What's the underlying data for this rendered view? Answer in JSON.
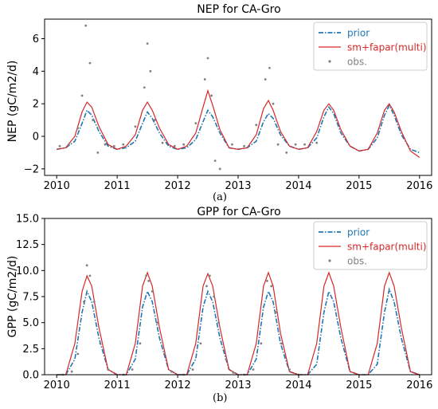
{
  "colors": {
    "prior": "#1f77b4",
    "multi": "#d62728",
    "obs": "#808080"
  },
  "captions": {
    "a": "(a)",
    "b": "(b)"
  },
  "chart_data": [
    {
      "type": "line",
      "title": "NEP for CA-Gro",
      "xlabel": "",
      "ylabel": "NEP (gC/m2/d)",
      "xlim": [
        2009.8,
        2016.2
      ],
      "ylim": [
        -2.4,
        7.2
      ],
      "xticks": [
        2010,
        2011,
        2012,
        2013,
        2014,
        2015,
        2016
      ],
      "xtick_labels": [
        "2010",
        "2011",
        "2012",
        "2013",
        "2014",
        "2015",
        "2016"
      ],
      "yticks": [
        -2,
        0,
        2,
        4,
        6
      ],
      "ytick_labels": [
        "−2",
        "0",
        "2",
        "4",
        "6"
      ],
      "grid": false,
      "legend_position": "top-right",
      "legend": [
        {
          "label": "prior",
          "style": "dash-dot"
        },
        {
          "label": "sm+fapar(multi)",
          "style": "solid"
        },
        {
          "label": "obs.",
          "style": "dots"
        }
      ],
      "series": [
        {
          "name": "prior",
          "x": [
            2010.0,
            2010.15,
            2010.3,
            2010.42,
            2010.5,
            2010.58,
            2010.7,
            2010.85,
            2011.0,
            2011.15,
            2011.3,
            2011.42,
            2011.5,
            2011.58,
            2011.7,
            2011.85,
            2012.0,
            2012.15,
            2012.3,
            2012.42,
            2012.5,
            2012.58,
            2012.7,
            2012.85,
            2013.0,
            2013.15,
            2013.3,
            2013.42,
            2013.5,
            2013.58,
            2013.7,
            2013.85,
            2014.0,
            2014.15,
            2014.3,
            2014.42,
            2014.5,
            2014.58,
            2014.7,
            2014.85,
            2015.0,
            2015.15,
            2015.3,
            2015.42,
            2015.5,
            2015.58,
            2015.7,
            2015.85,
            2016.0
          ],
          "values": [
            -0.8,
            -0.7,
            -0.3,
            0.8,
            1.6,
            1.3,
            0.3,
            -0.6,
            -0.8,
            -0.7,
            -0.3,
            0.8,
            1.5,
            1.1,
            0.2,
            -0.6,
            -0.8,
            -0.7,
            -0.2,
            0.9,
            1.6,
            1.2,
            0.2,
            -0.7,
            -0.8,
            -0.7,
            -0.3,
            0.9,
            1.4,
            1.1,
            0.1,
            -0.6,
            -0.8,
            -0.7,
            -0.1,
            1.2,
            1.8,
            1.4,
            0.2,
            -0.6,
            -0.9,
            -0.8,
            -0.1,
            1.3,
            1.9,
            1.3,
            0.1,
            -0.8,
            -1.0
          ]
        },
        {
          "name": "sm+fapar(multi)",
          "x": [
            2010.0,
            2010.15,
            2010.3,
            2010.42,
            2010.5,
            2010.58,
            2010.7,
            2010.85,
            2011.0,
            2011.15,
            2011.3,
            2011.42,
            2011.5,
            2011.58,
            2011.7,
            2011.85,
            2012.0,
            2012.15,
            2012.3,
            2012.42,
            2012.5,
            2012.58,
            2012.7,
            2012.85,
            2013.0,
            2013.15,
            2013.3,
            2013.42,
            2013.5,
            2013.58,
            2013.7,
            2013.85,
            2014.0,
            2014.15,
            2014.3,
            2014.42,
            2014.5,
            2014.58,
            2014.7,
            2014.85,
            2015.0,
            2015.15,
            2015.3,
            2015.42,
            2015.5,
            2015.58,
            2015.7,
            2015.85,
            2016.0
          ],
          "values": [
            -0.8,
            -0.7,
            0.0,
            1.5,
            2.1,
            1.8,
            0.6,
            -0.5,
            -0.8,
            -0.6,
            0.1,
            1.6,
            2.1,
            1.6,
            0.5,
            -0.5,
            -0.8,
            -0.6,
            0.2,
            1.8,
            2.8,
            1.9,
            0.4,
            -0.7,
            -0.8,
            -0.7,
            0.1,
            1.7,
            2.2,
            1.6,
            0.3,
            -0.6,
            -0.8,
            -0.7,
            0.3,
            1.6,
            2.0,
            1.6,
            0.4,
            -0.6,
            -0.9,
            -0.8,
            0.2,
            1.6,
            2.0,
            1.5,
            0.3,
            -0.9,
            -1.3
          ]
        },
        {
          "name": "obs.",
          "x": [
            2010.05,
            2010.2,
            2010.35,
            2010.42,
            2010.48,
            2010.55,
            2010.6,
            2010.68,
            2010.8,
            2010.95,
            2011.1,
            2011.3,
            2011.45,
            2011.5,
            2011.55,
            2011.62,
            2011.75,
            2011.95,
            2012.1,
            2012.3,
            2012.45,
            2012.5,
            2012.56,
            2012.62,
            2012.7,
            2012.9,
            2013.1,
            2013.3,
            2013.45,
            2013.52,
            2013.58,
            2013.66,
            2013.8,
            2013.95,
            2014.1,
            2014.3
          ],
          "values": [
            -0.6,
            -0.5,
            0.5,
            2.5,
            6.8,
            4.5,
            1.0,
            -1.0,
            -0.5,
            -0.6,
            -0.5,
            0.6,
            3.0,
            5.7,
            4.0,
            1.0,
            -0.4,
            -0.6,
            -0.5,
            0.8,
            3.5,
            4.8,
            2.5,
            -1.5,
            -2.0,
            -0.5,
            -0.6,
            0.7,
            3.5,
            4.2,
            2.0,
            -0.5,
            -1.0,
            -0.5,
            -0.5,
            -0.4
          ]
        }
      ]
    },
    {
      "type": "line",
      "title": "GPP for CA-Gro",
      "xlabel": "",
      "ylabel": "GPP (gC/m2/d)",
      "xlim": [
        2009.8,
        2016.2
      ],
      "ylim": [
        0,
        15
      ],
      "xticks": [
        2010,
        2011,
        2012,
        2013,
        2014,
        2015,
        2016
      ],
      "xtick_labels": [
        "2010",
        "2011",
        "2012",
        "2013",
        "2014",
        "2015",
        "2016"
      ],
      "yticks": [
        0,
        2.5,
        5,
        7.5,
        10,
        12.5,
        15
      ],
      "ytick_labels": [
        "0.0",
        "2.5",
        "5.0",
        "7.5",
        "10.0",
        "12.5",
        "15.0"
      ],
      "grid": false,
      "legend_position": "top-right",
      "legend": [
        {
          "label": "prior",
          "style": "dash-dot"
        },
        {
          "label": "sm+fapar(multi)",
          "style": "solid"
        },
        {
          "label": "obs.",
          "style": "dots"
        }
      ],
      "series": [
        {
          "name": "prior",
          "x": [
            2010.0,
            2010.15,
            2010.3,
            2010.42,
            2010.5,
            2010.58,
            2010.7,
            2010.85,
            2011.0,
            2011.15,
            2011.3,
            2011.42,
            2011.5,
            2011.58,
            2011.7,
            2011.85,
            2012.0,
            2012.15,
            2012.3,
            2012.42,
            2012.5,
            2012.58,
            2012.7,
            2012.85,
            2013.0,
            2013.15,
            2013.3,
            2013.42,
            2013.5,
            2013.58,
            2013.7,
            2013.85,
            2014.0,
            2014.15,
            2014.3,
            2014.42,
            2014.5,
            2014.58,
            2014.7,
            2014.85,
            2015.0,
            2015.15,
            2015.3,
            2015.42,
            2015.5,
            2015.58,
            2015.7,
            2015.85,
            2016.0
          ],
          "values": [
            0.0,
            0.0,
            1.5,
            6.0,
            8.0,
            7.0,
            3.5,
            0.5,
            0.0,
            0.0,
            1.5,
            6.5,
            8.0,
            7.0,
            3.5,
            0.5,
            0.0,
            0.0,
            1.5,
            6.5,
            8.0,
            7.0,
            3.5,
            0.5,
            0.0,
            0.0,
            1.5,
            6.5,
            8.0,
            7.0,
            3.0,
            0.3,
            0.0,
            0.0,
            1.0,
            6.0,
            8.0,
            7.0,
            3.5,
            0.3,
            0.0,
            0.0,
            1.0,
            6.0,
            8.2,
            7.0,
            3.5,
            0.3,
            0.0
          ]
        },
        {
          "name": "sm+fapar(multi)",
          "x": [
            2010.0,
            2010.15,
            2010.3,
            2010.42,
            2010.5,
            2010.58,
            2010.7,
            2010.85,
            2011.0,
            2011.15,
            2011.3,
            2011.42,
            2011.5,
            2011.58,
            2011.7,
            2011.85,
            2012.0,
            2012.15,
            2012.3,
            2012.42,
            2012.5,
            2012.58,
            2012.7,
            2012.85,
            2013.0,
            2013.15,
            2013.3,
            2013.42,
            2013.5,
            2013.58,
            2013.7,
            2013.85,
            2014.0,
            2014.15,
            2014.3,
            2014.42,
            2014.5,
            2014.58,
            2014.7,
            2014.85,
            2015.0,
            2015.15,
            2015.3,
            2015.42,
            2015.5,
            2015.58,
            2015.7,
            2015.85,
            2016.0
          ],
          "values": [
            0.0,
            0.0,
            3.0,
            8.0,
            9.5,
            8.5,
            4.5,
            0.5,
            0.0,
            0.0,
            3.0,
            8.5,
            9.8,
            8.5,
            4.5,
            0.5,
            0.0,
            0.0,
            3.0,
            8.5,
            9.7,
            8.5,
            4.5,
            0.5,
            0.0,
            0.0,
            3.0,
            8.5,
            9.8,
            8.5,
            4.0,
            0.3,
            0.0,
            0.0,
            3.0,
            8.5,
            9.8,
            8.5,
            4.5,
            0.3,
            0.0,
            0.0,
            3.0,
            8.5,
            9.8,
            8.5,
            4.5,
            0.3,
            0.0
          ]
        },
        {
          "name": "obs.",
          "x": [
            2010.1,
            2010.25,
            2010.35,
            2010.45,
            2010.5,
            2010.55,
            2010.62,
            2010.72,
            2010.85,
            2011.1,
            2011.25,
            2011.38,
            2011.48,
            2011.52,
            2011.58,
            2011.66,
            2011.78,
            2011.9,
            2012.1,
            2012.25,
            2012.38,
            2012.48,
            2012.53,
            2012.6,
            2012.68,
            2012.8,
            2012.92,
            2013.1,
            2013.25,
            2013.38,
            2013.48,
            2013.55,
            2013.62,
            2013.72,
            2013.85,
            2014.0
          ],
          "values": [
            0.0,
            0.3,
            2.0,
            7.0,
            10.5,
            9.5,
            7.0,
            3.0,
            0.5,
            0.0,
            0.5,
            3.0,
            9.5,
            9.0,
            8.0,
            5.0,
            2.0,
            0.3,
            0.0,
            0.5,
            3.0,
            8.5,
            9.5,
            7.5,
            5.0,
            1.5,
            0.2,
            0.0,
            0.5,
            3.0,
            9.0,
            8.5,
            6.0,
            3.0,
            0.5,
            0.0
          ]
        }
      ]
    }
  ]
}
